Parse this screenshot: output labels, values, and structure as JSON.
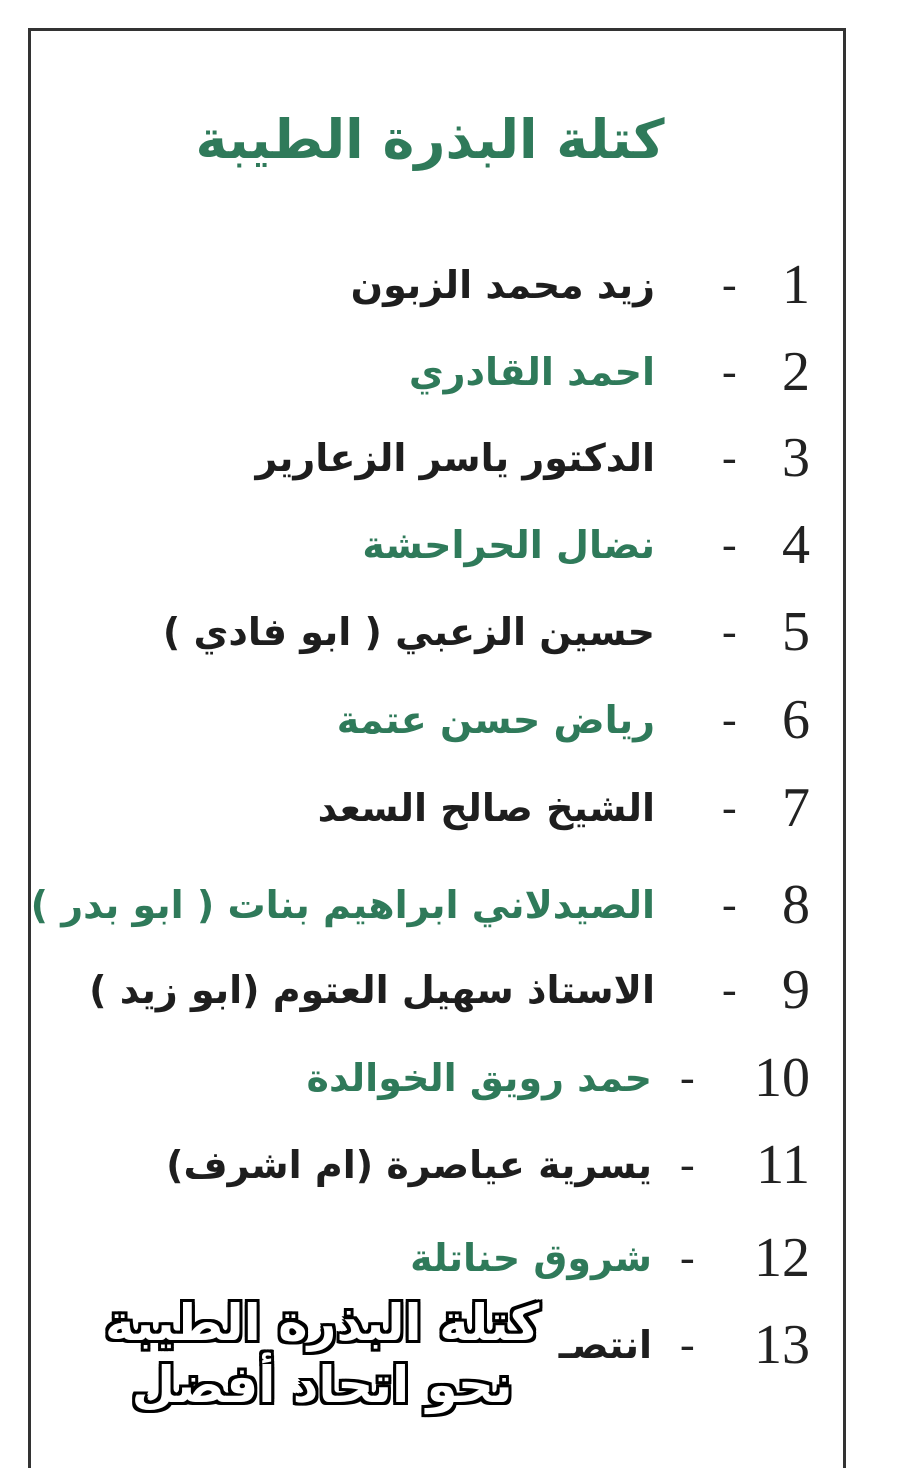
{
  "colors": {
    "green": "#2f7a5a",
    "dark": "#1e1e1e"
  },
  "title": "كتلة البذرة الطيبة",
  "candidates": [
    {
      "number": "1",
      "name": "زيد محمد الزبون",
      "color": "dark"
    },
    {
      "number": "2",
      "name": "احمد القادري",
      "color": "green"
    },
    {
      "number": "3",
      "name": "الدكتور ياسر الزعارير",
      "color": "dark"
    },
    {
      "number": "4",
      "name": "نضال الحراحشة",
      "color": "green"
    },
    {
      "number": "5",
      "name": "حسين الزعبي ( ابو فادي )",
      "color": "dark"
    },
    {
      "number": "6",
      "name": "رياض حسن عتمة",
      "color": "green"
    },
    {
      "number": "7",
      "name": "الشيخ صالح السعد",
      "color": "dark"
    },
    {
      "number": "8",
      "name": "الصيدلاني ابراهيم بنات ( ابو بدر )",
      "color": "green"
    },
    {
      "number": "9",
      "name": "الاستاذ سهيل العتوم (ابو زيد )",
      "color": "dark"
    },
    {
      "number": "10",
      "name": "حمد رويق الخوالدة",
      "color": "green"
    },
    {
      "number": "11",
      "name": "يسرية عياصرة (ام اشرف)",
      "color": "dark"
    },
    {
      "number": "12",
      "name": "شروق حناتلة",
      "color": "green"
    },
    {
      "number": "13",
      "name": "انتصـ",
      "color": "dark"
    }
  ],
  "dash": "-",
  "overlay": {
    "line1": "كتلة البذرة الطيبة",
    "line2": "نحو اتحاد أفضل"
  }
}
